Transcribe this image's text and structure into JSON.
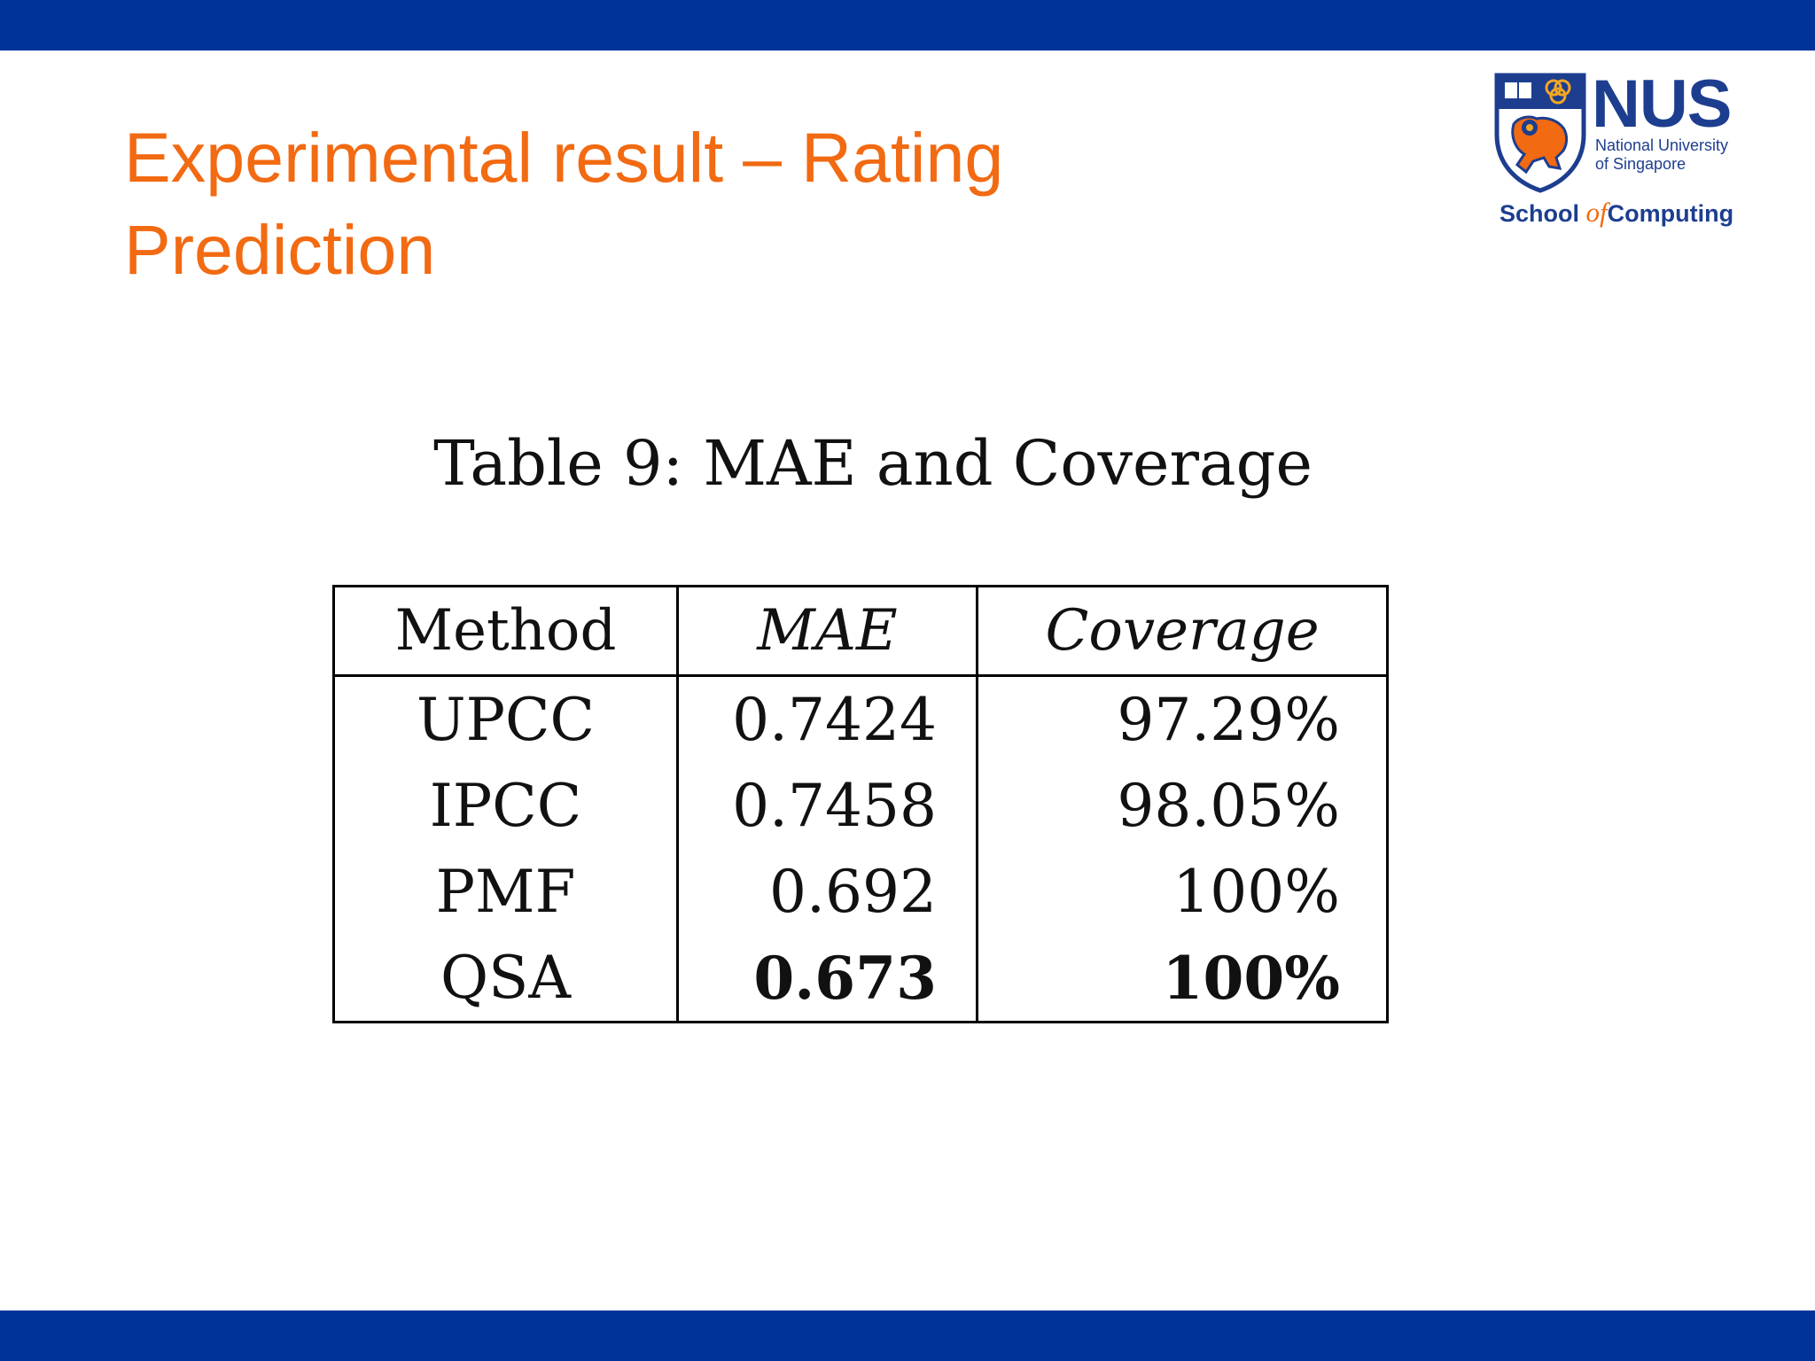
{
  "slide": {
    "title": "Experimental result – Rating Prediction"
  },
  "logo": {
    "name": "NUS",
    "university": [
      "National University",
      "of Singapore"
    ],
    "school": {
      "before": "School ",
      "of": "of",
      "after": "Computing"
    }
  },
  "table": {
    "caption": "Table 9:  MAE and Coverage",
    "headers": [
      "Method",
      "MAE",
      "Coverage"
    ],
    "rows": [
      {
        "method": "UPCC",
        "mae": "0.7424",
        "coverage": "97.29%",
        "bold": false
      },
      {
        "method": "IPCC",
        "mae": "0.7458",
        "coverage": "98.05%",
        "bold": false
      },
      {
        "method": "PMF",
        "mae": "0.692",
        "coverage": "100%",
        "bold": false
      },
      {
        "method": "QSA",
        "mae": "0.673",
        "coverage": "100%",
        "bold": true
      }
    ]
  },
  "colors": {
    "band": "#003399",
    "title": "#f26a12",
    "logo_blue": "#1d3e8f",
    "logo_orange": "#f26a12"
  }
}
